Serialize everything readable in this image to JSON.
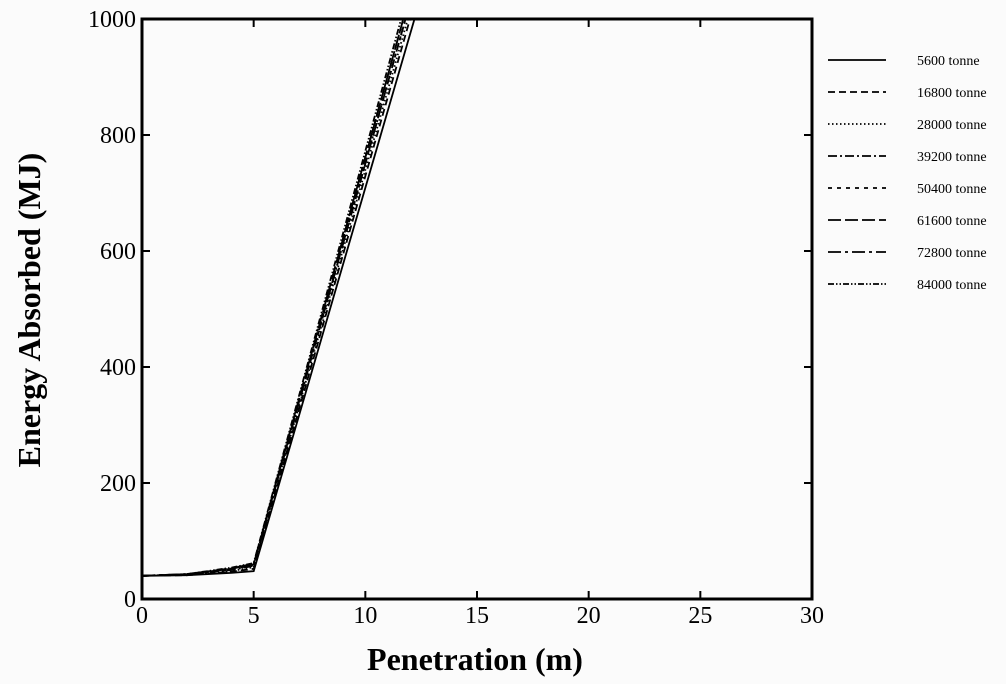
{
  "chart_data": {
    "type": "line",
    "title": "",
    "xlabel": "Penetration (m)",
    "ylabel": "Energy Absorbed (MJ)",
    "xlim": [
      0,
      30
    ],
    "ylim": [
      0,
      1000
    ],
    "xticks": [
      0,
      5,
      10,
      15,
      20,
      25,
      30
    ],
    "yticks": [
      0,
      200,
      400,
      600,
      800,
      1000
    ],
    "grid": false,
    "legend_position": "right, outside plot",
    "series": [
      {
        "name": "5600 tonne",
        "dash": "solid",
        "x": [
          0,
          2,
          4,
          5,
          12.2
        ],
        "y": [
          40,
          41,
          45,
          48,
          1000
        ]
      },
      {
        "name": "16800 tonne",
        "dash": "dashed",
        "x": [
          0,
          2,
          4,
          5,
          12.0
        ],
        "y": [
          40,
          41,
          47,
          52,
          1000
        ]
      },
      {
        "name": "28000 tonne",
        "dash": "dotted",
        "x": [
          0,
          2,
          4,
          5,
          11.9
        ],
        "y": [
          40,
          42,
          48,
          55,
          1000
        ]
      },
      {
        "name": "39200 tonne",
        "dash": "dash-dot",
        "x": [
          0,
          2,
          4,
          5,
          11.8
        ],
        "y": [
          40,
          42,
          50,
          57,
          1000
        ]
      },
      {
        "name": "50400 tonne",
        "dash": "short-dashed",
        "x": [
          0,
          2,
          4,
          5,
          11.8
        ],
        "y": [
          40,
          42,
          51,
          59,
          1000
        ]
      },
      {
        "name": "61600 tonne",
        "dash": "long-dashed",
        "x": [
          0,
          2,
          4,
          5,
          11.7
        ],
        "y": [
          40,
          43,
          52,
          60,
          1000
        ]
      },
      {
        "name": "72800 tonne",
        "dash": "long-dash-dot",
        "x": [
          0,
          2,
          4,
          5,
          11.7
        ],
        "y": [
          40,
          43,
          53,
          61,
          1000
        ]
      },
      {
        "name": "84000 tonne",
        "dash": "dash-dot-dot",
        "x": [
          0,
          2,
          4,
          5,
          11.6
        ],
        "y": [
          40,
          43,
          54,
          62,
          1000
        ]
      }
    ]
  }
}
